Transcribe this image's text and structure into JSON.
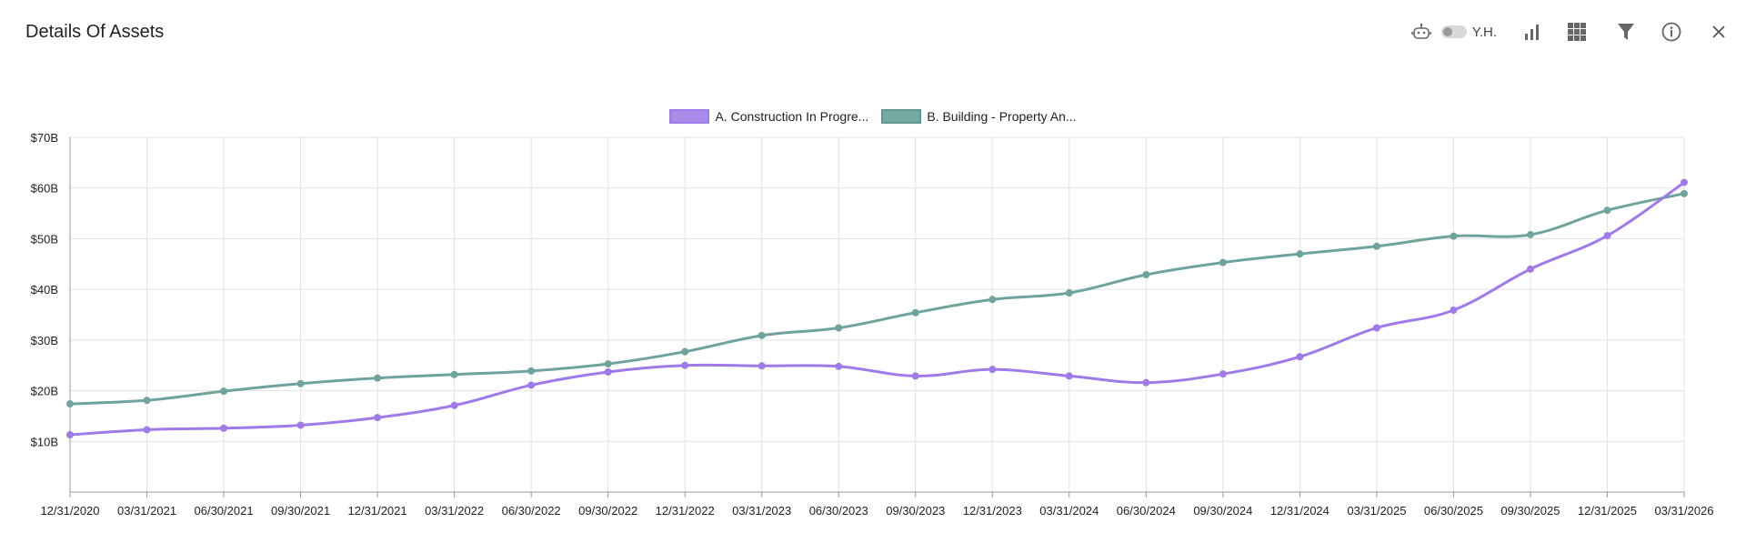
{
  "header": {
    "title": "Details Of Assets",
    "yh_label": "Y.H."
  },
  "toolbar": {
    "icons": [
      "robot-icon",
      "toggle-switch",
      "bar-chart-icon",
      "grid-icon",
      "filter-icon",
      "info-icon",
      "close-icon"
    ]
  },
  "colors": {
    "series_a": "#9f7ae8",
    "series_b": "#6fa49d",
    "grid": "#e3e3e3",
    "axis": "#999999"
  },
  "chart_data": {
    "type": "line",
    "title": "",
    "xlabel": "",
    "ylabel": "",
    "ylim": [
      0,
      70
    ],
    "y_ticks": [
      "$10B",
      "$20B",
      "$30B",
      "$40B",
      "$50B",
      "$60B",
      "$70B"
    ],
    "categories": [
      "12/31/2020",
      "03/31/2021",
      "06/30/2021",
      "09/30/2021",
      "12/31/2021",
      "03/31/2022",
      "06/30/2022",
      "09/30/2022",
      "12/31/2022",
      "03/31/2023",
      "06/30/2023",
      "09/30/2023",
      "12/31/2023",
      "03/31/2024",
      "06/30/2024",
      "09/30/2024",
      "12/31/2024",
      "03/31/2025",
      "06/30/2025",
      "09/30/2025",
      "12/31/2025",
      "03/31/2026"
    ],
    "legend_position": "top-center",
    "grid": true,
    "series": [
      {
        "name": "A. Construction In Progre...",
        "color": "#9f7ae8",
        "values": [
          11.3,
          12.3,
          12.6,
          13.2,
          14.7,
          17.1,
          21.1,
          23.7,
          25.0,
          24.9,
          24.8,
          22.9,
          24.2,
          22.9,
          21.6,
          23.3,
          26.7,
          32.4,
          35.9,
          44.0,
          50.6,
          61.1
        ]
      },
      {
        "name": "B. Building - Property An...",
        "color": "#6fa49d",
        "values": [
          17.4,
          18.1,
          19.9,
          21.4,
          22.5,
          23.2,
          23.9,
          25.3,
          27.7,
          30.9,
          32.4,
          35.4,
          38.0,
          39.3,
          42.9,
          45.3,
          47.0,
          48.5,
          50.5,
          50.8,
          55.6,
          58.9
        ]
      }
    ]
  }
}
